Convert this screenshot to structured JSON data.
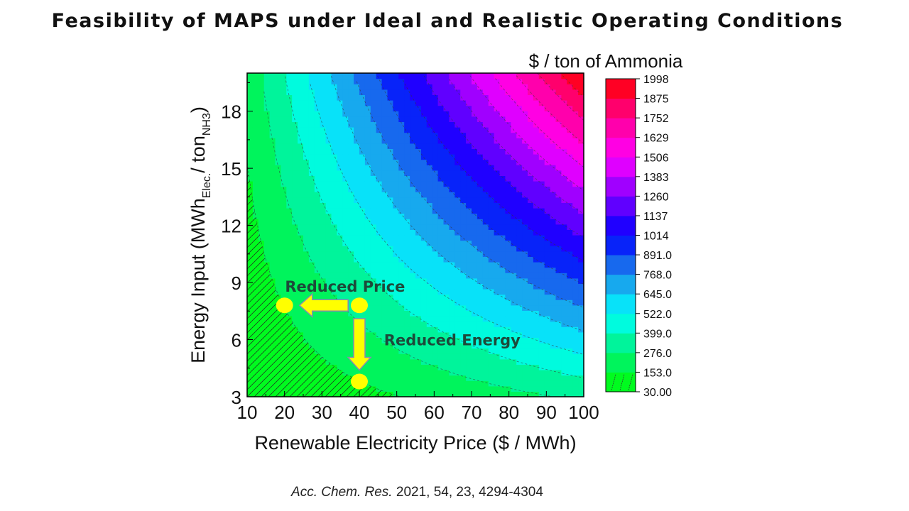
{
  "title": "Feasibility of MAPS under Ideal and Realistic Operating Conditions",
  "citation": {
    "journal": "Acc. Chem. Res.",
    "rest": " 2021, 54, 23, 4294-4304"
  },
  "chart_data": {
    "type": "heatmap",
    "xlabel": "Renewable Electricity Price ($ / MWh)",
    "ylabel_main": "Energy Input (MWh",
    "ylabel_sub1": "Elec.",
    "ylabel_mid": "/ ton",
    "ylabel_sub2": "NH3",
    "ylabel_end": ")",
    "colorbar_title": "$ / ton of Ammonia",
    "xlim": [
      10,
      100
    ],
    "ylim": [
      3,
      20
    ],
    "xticks": [
      10,
      20,
      30,
      40,
      50,
      60,
      70,
      80,
      90,
      100
    ],
    "yticks": [
      3,
      6,
      9,
      12,
      15,
      18
    ],
    "z_formula": "price × energy",
    "colorbar_levels": [
      "30.00",
      "153.0",
      "276.0",
      "399.0",
      "522.0",
      "645.0",
      "768.0",
      "891.0",
      "1014",
      "1137",
      "1260",
      "1383",
      "1506",
      "1629",
      "1752",
      "1875",
      "1998"
    ],
    "zlim": [
      30,
      1998
    ],
    "hatched_region": "z < 153",
    "colormap": [
      "#00ff00",
      "#00f07a",
      "#00ffff",
      "#1e8ce8",
      "#0000ff",
      "#8000ff",
      "#ff00ff",
      "#ff0090",
      "#ff0000"
    ],
    "annotations": [
      {
        "text": "Reduced Price",
        "x": 30,
        "y": 9.0
      },
      {
        "text": "Reduced Energy",
        "x": 58,
        "y": 6.0
      }
    ],
    "points": [
      {
        "x": 20,
        "y": 7.8
      },
      {
        "x": 40,
        "y": 7.8
      },
      {
        "x": 40,
        "y": 3.8
      }
    ],
    "arrows": [
      {
        "from": [
          37,
          7.8
        ],
        "to": [
          24,
          7.8
        ]
      },
      {
        "from": [
          40,
          7.1
        ],
        "to": [
          40,
          4.4
        ]
      }
    ],
    "marker_color": "#ffff00"
  }
}
